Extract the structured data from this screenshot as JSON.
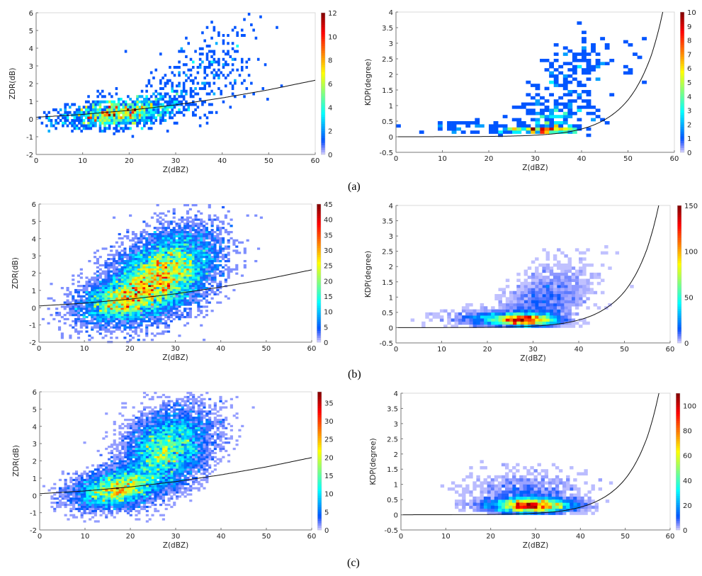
{
  "captions": [
    "(a)",
    "(b)",
    "(c)"
  ],
  "chart_data": [
    {
      "id": "a-zdr",
      "type": "heatmap",
      "row": "(a)",
      "xlabel": "Z(dBZ)",
      "ylabel": "ZDR(dB)",
      "xlim": [
        0,
        60
      ],
      "ylim": [
        -2,
        6
      ],
      "xticks": [
        0,
        10,
        20,
        30,
        40,
        50,
        60
      ],
      "yticks": [
        -2,
        -1,
        0,
        1,
        2,
        3,
        4,
        5,
        6
      ],
      "colorbar": {
        "max": 12,
        "ticks": [
          0,
          2,
          4,
          6,
          8,
          10,
          12
        ]
      },
      "bin": {
        "z": 0.5,
        "y": 0.15
      },
      "density_clusters": [
        {
          "z": 17,
          "y": 0.3,
          "sz": 6,
          "sy": 0.4,
          "rho": 0.35,
          "n": 1100
        },
        {
          "z": 37,
          "y": 2.8,
          "sz": 6,
          "sy": 1.4,
          "rho": 0.4,
          "n": 230
        },
        {
          "z": 26,
          "y": 0.9,
          "sz": 6,
          "sy": 0.6,
          "rho": 0.3,
          "n": 250
        }
      ],
      "fit_curve": {
        "x": [
          0,
          10,
          20,
          30,
          40,
          50,
          60
        ],
        "y": [
          0.1,
          0.26,
          0.49,
          0.8,
          1.19,
          1.65,
          2.19
        ]
      }
    },
    {
      "id": "a-kdp",
      "type": "heatmap",
      "row": "(a)",
      "xlabel": "Z(dBZ)",
      "ylabel": "KDP(degree)",
      "xlim": [
        0,
        60
      ],
      "ylim": [
        -0.5,
        4
      ],
      "xticks": [
        0,
        10,
        20,
        30,
        40,
        50,
        60
      ],
      "yticks": [
        -0.5,
        0,
        0.5,
        1,
        1.5,
        2,
        2.5,
        3,
        3.5,
        4
      ],
      "colorbar": {
        "max": 10,
        "ticks": [
          0,
          1,
          2,
          3,
          4,
          5,
          6,
          7,
          8,
          9,
          10
        ]
      },
      "bin": {
        "z": 1,
        "y": 0.1
      },
      "density_clusters": [
        {
          "z": 31,
          "y": 0.22,
          "sz": 4,
          "sy": 0.05,
          "rho": 0,
          "n": 150
        },
        {
          "z": 38,
          "y": 1.6,
          "sz": 6,
          "sy": 1.0,
          "rho": 0.5,
          "n": 200
        },
        {
          "z": 16,
          "y": 0.3,
          "sz": 5,
          "sy": 0.15,
          "rho": 0,
          "n": 45
        },
        {
          "z": 33,
          "y": 0.6,
          "sz": 4,
          "sy": 0.3,
          "rho": 0,
          "n": 90
        }
      ],
      "fit_curve": {
        "x": [
          0,
          10,
          20,
          30,
          35,
          40,
          45,
          50,
          52.5,
          55,
          57.5
        ],
        "y": [
          0,
          0.002,
          0.01,
          0.05,
          0.11,
          0.25,
          0.55,
          1.18,
          1.75,
          2.6,
          4.0
        ]
      }
    },
    {
      "id": "b-zdr",
      "type": "heatmap",
      "row": "(b)",
      "xlabel": "Z(dBZ)",
      "ylabel": "ZDR(dB)",
      "xlim": [
        0,
        60
      ],
      "ylim": [
        -2,
        6
      ],
      "xticks": [
        0,
        10,
        20,
        30,
        40,
        50,
        60
      ],
      "yticks": [
        -2,
        -1,
        0,
        1,
        2,
        3,
        4,
        5,
        6
      ],
      "colorbar": {
        "max": 45,
        "ticks": [
          0,
          5,
          10,
          15,
          20,
          25,
          30,
          35,
          40,
          45
        ]
      },
      "bin": {
        "z": 0.6,
        "y": 0.12
      },
      "density_clusters": [
        {
          "z": 27,
          "y": 1.9,
          "sz": 6,
          "sy": 1.3,
          "rho": 0.4,
          "n": 9000
        },
        {
          "z": 18,
          "y": 0.4,
          "sz": 5,
          "sy": 0.7,
          "rho": 0.3,
          "n": 3000
        }
      ],
      "fit_curve": {
        "x": [
          0,
          10,
          20,
          30,
          40,
          50,
          60
        ],
        "y": [
          0.1,
          0.26,
          0.49,
          0.8,
          1.19,
          1.65,
          2.19
        ]
      }
    },
    {
      "id": "b-kdp",
      "type": "heatmap",
      "row": "(b)",
      "xlabel": "Z(dBZ)",
      "ylabel": "KDP(degree)",
      "xlim": [
        0,
        60
      ],
      "ylim": [
        -0.5,
        4
      ],
      "xticks": [
        0,
        10,
        20,
        30,
        40,
        50,
        60
      ],
      "yticks": [
        -0.5,
        0,
        0.5,
        1,
        1.5,
        2,
        2.5,
        3,
        3.5,
        4
      ],
      "colorbar": {
        "max": 150,
        "ticks": [
          0,
          50,
          100,
          150
        ]
      },
      "bin": {
        "z": 0.8,
        "y": 0.1
      },
      "density_clusters": [
        {
          "z": 28,
          "y": 0.25,
          "sz": 4,
          "sy": 0.12,
          "rho": 0,
          "n": 3000
        },
        {
          "z": 32,
          "y": 0.8,
          "sz": 5,
          "sy": 0.6,
          "rho": 0.5,
          "n": 1500
        },
        {
          "z": 20,
          "y": 0.3,
          "sz": 5,
          "sy": 0.15,
          "rho": 0,
          "n": 600
        }
      ],
      "fit_curve": {
        "x": [
          0,
          10,
          20,
          30,
          35,
          40,
          45,
          50,
          52.5,
          55,
          57.5
        ],
        "y": [
          0,
          0.002,
          0.01,
          0.05,
          0.11,
          0.25,
          0.55,
          1.18,
          1.75,
          2.6,
          4.0
        ]
      }
    },
    {
      "id": "c-zdr",
      "type": "heatmap",
      "row": "(c)",
      "xlabel": "Z(dBZ)",
      "ylabel": "ZDR(dB)",
      "xlim": [
        0,
        60
      ],
      "ylim": [
        -2,
        6
      ],
      "xticks": [
        0,
        10,
        20,
        30,
        40,
        50,
        60
      ],
      "yticks": [
        -2,
        -1,
        0,
        1,
        2,
        3,
        4,
        5,
        6
      ],
      "colorbar": {
        "max": 38,
        "ticks": [
          0,
          5,
          10,
          15,
          20,
          25,
          30,
          35
        ]
      },
      "bin": {
        "z": 0.6,
        "y": 0.12
      },
      "density_clusters": [
        {
          "z": 28,
          "y": 2.7,
          "sz": 5,
          "sy": 1.2,
          "rho": 0.3,
          "n": 6500
        },
        {
          "z": 17,
          "y": 0.4,
          "sz": 5,
          "sy": 0.6,
          "rho": 0.3,
          "n": 4500
        }
      ],
      "fit_curve": {
        "x": [
          0,
          10,
          20,
          30,
          40,
          50,
          60
        ],
        "y": [
          0.1,
          0.26,
          0.49,
          0.8,
          1.19,
          1.65,
          2.19
        ]
      }
    },
    {
      "id": "c-kdp",
      "type": "heatmap",
      "row": "(c)",
      "xlabel": "Z(dBZ)",
      "ylabel": "KDP(degree)",
      "xlim": [
        0,
        60
      ],
      "ylim": [
        -0.5,
        4
      ],
      "xticks": [
        0,
        10,
        20,
        30,
        40,
        50,
        60
      ],
      "yticks": [
        -0.5,
        0,
        0.5,
        1,
        1.5,
        2,
        2.5,
        3,
        3.5,
        4
      ],
      "colorbar": {
        "max": 110,
        "ticks": [
          0,
          20,
          40,
          60,
          80,
          100
        ]
      },
      "bin": {
        "z": 0.8,
        "y": 0.1
      },
      "density_clusters": [
        {
          "z": 29,
          "y": 0.3,
          "sz": 5,
          "sy": 0.14,
          "rho": 0,
          "n": 3500
        },
        {
          "z": 28,
          "y": 0.7,
          "sz": 6,
          "sy": 0.35,
          "rho": 0,
          "n": 800
        }
      ],
      "fit_curve": {
        "x": [
          0,
          10,
          20,
          30,
          35,
          40,
          45,
          50,
          52.5,
          55,
          57.5
        ],
        "y": [
          0,
          0.002,
          0.01,
          0.05,
          0.11,
          0.25,
          0.55,
          1.18,
          1.75,
          2.6,
          4.0
        ]
      }
    }
  ]
}
